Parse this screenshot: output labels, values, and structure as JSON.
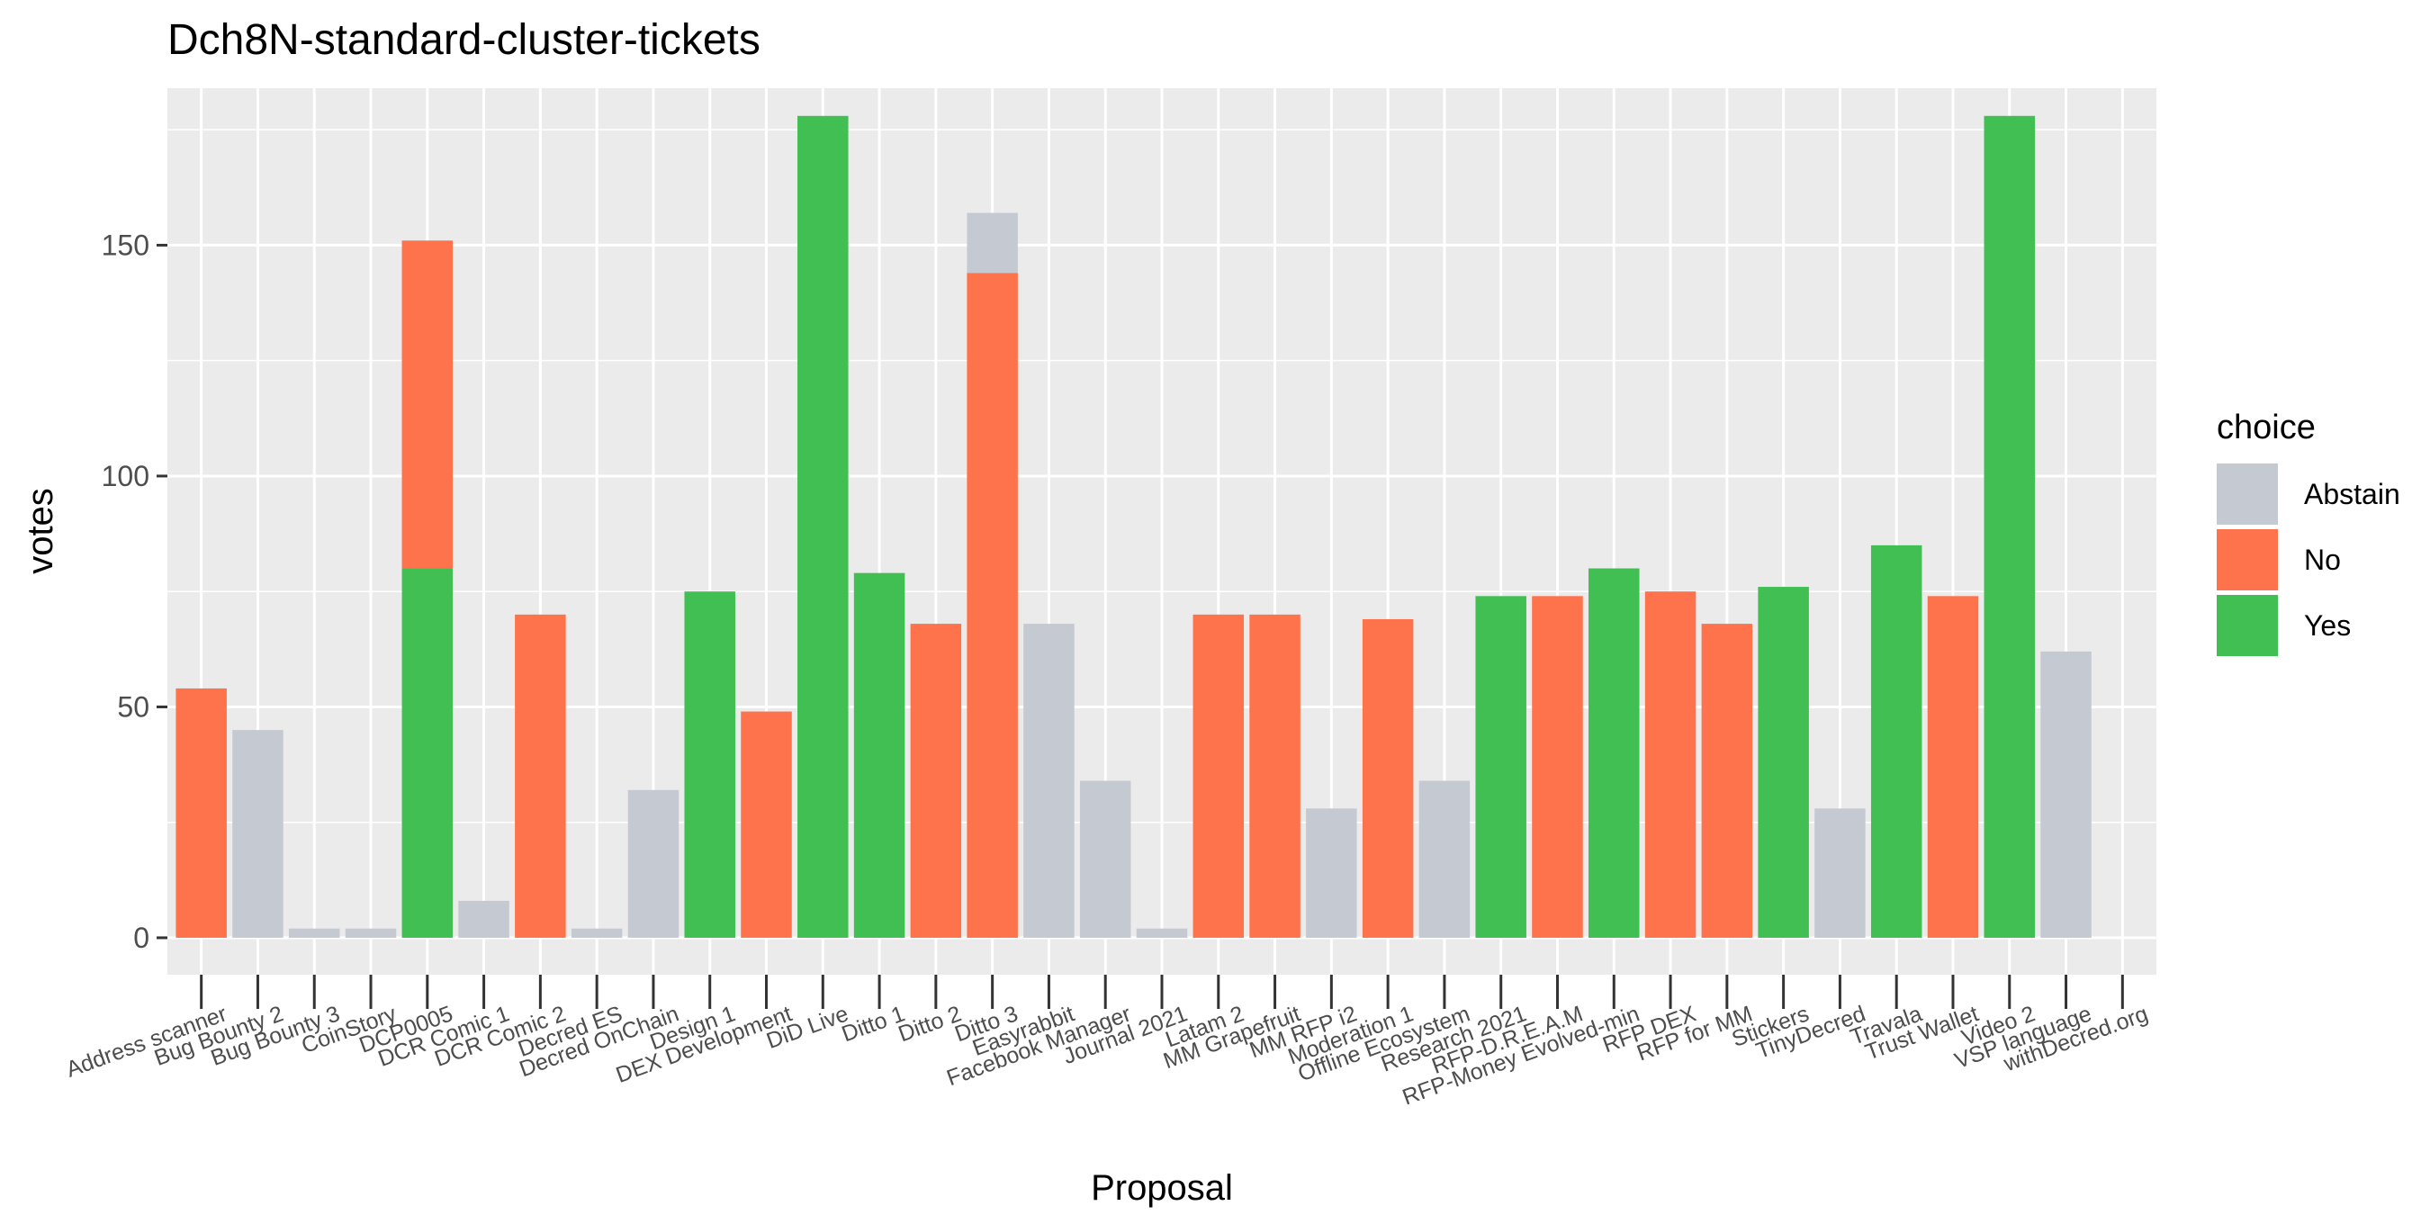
{
  "chart_data": {
    "type": "bar",
    "stacked": true,
    "title": "Dch8N-standard-cluster-tickets",
    "xlabel": "Proposal",
    "ylabel": "votes",
    "ylim": [
      -8,
      184
    ],
    "yticks": [
      0,
      50,
      100,
      150
    ],
    "grid": true,
    "legend": {
      "title": "choice",
      "placement": "right",
      "entries": [
        "Abstain",
        "No",
        "Yes"
      ]
    },
    "colors": {
      "Abstain": "#c5cad2",
      "No": "#fe724c",
      "Yes": "#41bf52"
    },
    "categories": [
      "Address scanner",
      "Bug Bounty 2",
      "Bug Bounty 3",
      "CoinStory",
      "DCP0005",
      "DCR Comic 1",
      "DCR Comic 2",
      "Decred ES",
      "Decred OnChain",
      "Design 1",
      "DEX Development",
      "DiD Live",
      "Ditto 1",
      "Ditto 2",
      "Ditto 3",
      "Easyrabbit",
      "Facebook Manager",
      "Journal 2021",
      "Latam 2",
      "MM Grapefruit",
      "MM RFP i2",
      "Moderation 1",
      "Offline Ecosystem",
      "Research 2021",
      "RFP-D.R.E.A.M",
      "RFP-Money Evolved-min",
      "RFP DEX",
      "RFP for MM",
      "Stickers",
      "TinyDecred",
      "Travala",
      "Trust Wallet",
      "Video 2",
      "VSP language",
      "withDecred.org"
    ],
    "series": [
      {
        "name": "Abstain",
        "values": [
          0,
          45,
          2,
          2,
          0,
          8,
          0,
          2,
          32,
          0,
          0,
          0,
          0,
          0,
          13,
          68,
          34,
          2,
          0,
          0,
          28,
          0,
          34,
          0,
          0,
          0,
          0,
          0,
          0,
          28,
          0,
          0,
          0,
          62,
          0
        ]
      },
      {
        "name": "No",
        "values": [
          54,
          0,
          0,
          0,
          71,
          0,
          70,
          0,
          0,
          0,
          49,
          0,
          0,
          68,
          144,
          0,
          0,
          0,
          70,
          70,
          0,
          69,
          0,
          0,
          74,
          0,
          75,
          68,
          0,
          0,
          0,
          74,
          0,
          0,
          0
        ]
      },
      {
        "name": "Yes",
        "values": [
          0,
          0,
          0,
          0,
          80,
          0,
          0,
          0,
          0,
          75,
          0,
          178,
          79,
          0,
          0,
          0,
          0,
          0,
          0,
          0,
          0,
          0,
          0,
          74,
          0,
          80,
          0,
          0,
          76,
          0,
          85,
          0,
          178,
          0,
          0
        ]
      }
    ]
  }
}
